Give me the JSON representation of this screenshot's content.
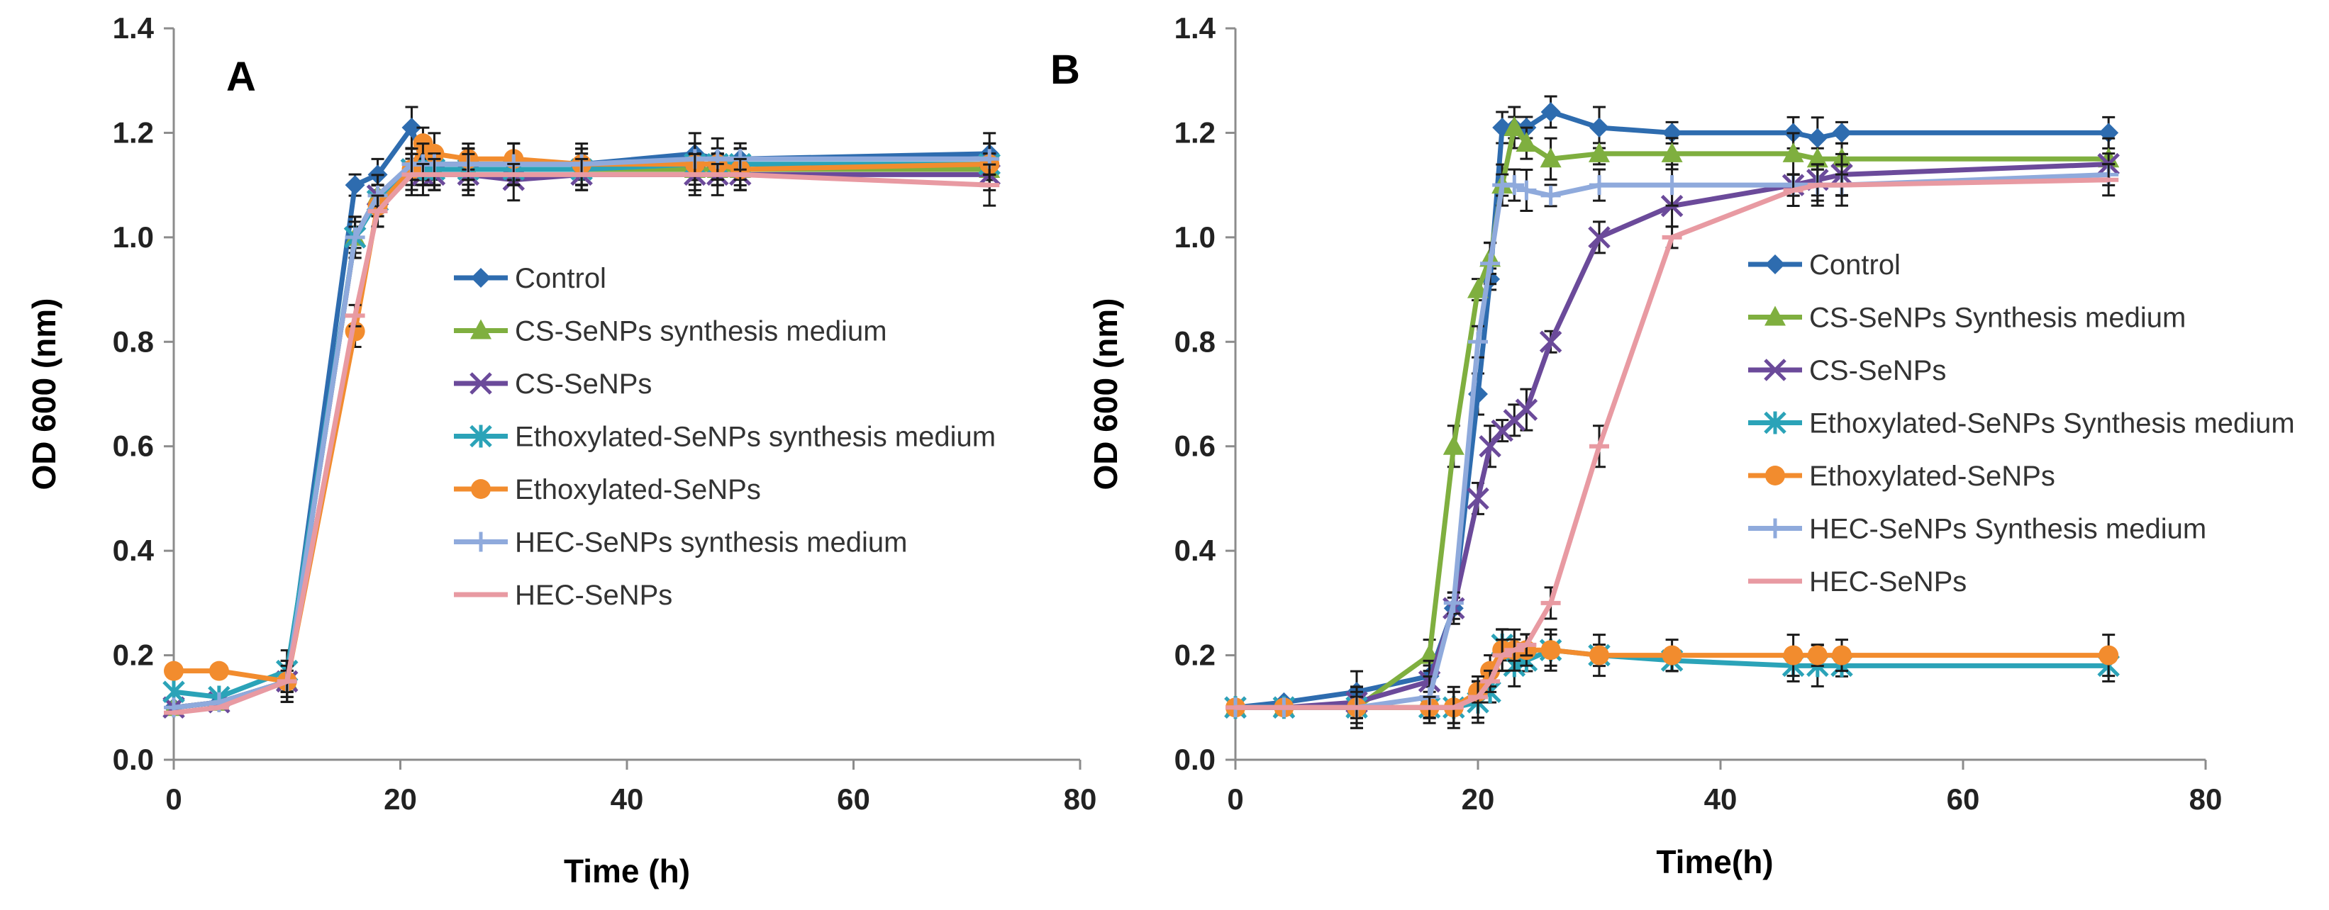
{
  "chart_data": [
    {
      "type": "line",
      "panel_label": "A",
      "xlabel": "Time (h)",
      "ylabel": "OD 600 (nm)",
      "xlim": [
        0,
        80
      ],
      "ylim": [
        0,
        1.4
      ],
      "xticks": [
        "0",
        "20",
        "40",
        "60",
        "80"
      ],
      "yticks": [
        "0.0",
        "0.2",
        "0.4",
        "0.6",
        "0.8",
        "1.0",
        "1.2",
        "1.4"
      ],
      "grid": false,
      "legend_position": "center-right",
      "series": [
        {
          "name": "Control",
          "color": "#2E6CAF",
          "marker": "diamond",
          "x": [
            0,
            4,
            10,
            16,
            18,
            21,
            22,
            23,
            26,
            30,
            36,
            46,
            48,
            50,
            72
          ],
          "y": [
            0.1,
            0.11,
            0.15,
            1.1,
            1.12,
            1.21,
            1.14,
            1.14,
            1.14,
            1.14,
            1.14,
            1.16,
            1.15,
            1.15,
            1.16
          ]
        },
        {
          "name": "CS-SeNPs synthesis medium",
          "color": "#7FAF3F",
          "marker": "triangle",
          "x": [
            0,
            4,
            10,
            16,
            18,
            21,
            22,
            23,
            26,
            30,
            36,
            46,
            48,
            50,
            72
          ],
          "y": [
            0.1,
            0.11,
            0.15,
            1.0,
            1.08,
            1.13,
            1.13,
            1.13,
            1.13,
            1.13,
            1.13,
            1.13,
            1.13,
            1.13,
            1.13
          ]
        },
        {
          "name": "CS-SeNPs",
          "color": "#6B4A9A",
          "marker": "x",
          "x": [
            0,
            4,
            10,
            16,
            18,
            21,
            22,
            23,
            26,
            30,
            36,
            46,
            48,
            50,
            72
          ],
          "y": [
            0.1,
            0.11,
            0.15,
            1.0,
            1.08,
            1.13,
            1.12,
            1.12,
            1.12,
            1.11,
            1.12,
            1.12,
            1.12,
            1.12,
            1.12
          ]
        },
        {
          "name": "Ethoxylated-SeNPs synthesis medium",
          "color": "#2BA3B8",
          "marker": "asterisk",
          "x": [
            0,
            4,
            10,
            16,
            18,
            21,
            22,
            23,
            26,
            30,
            36,
            46,
            48,
            50,
            72
          ],
          "y": [
            0.13,
            0.12,
            0.17,
            1.0,
            1.07,
            1.13,
            1.13,
            1.13,
            1.13,
            1.13,
            1.13,
            1.14,
            1.14,
            1.14,
            1.14
          ]
        },
        {
          "name": "Ethoxylated-SeNPs",
          "color": "#F28C2E",
          "marker": "circle",
          "x": [
            0,
            4,
            10,
            16,
            18,
            21,
            22,
            23,
            26,
            30,
            36,
            46,
            48,
            50,
            72
          ],
          "y": [
            0.17,
            0.17,
            0.15,
            0.82,
            1.06,
            1.13,
            1.18,
            1.16,
            1.15,
            1.15,
            1.14,
            1.14,
            1.14,
            1.13,
            1.14
          ]
        },
        {
          "name": "HEC-SeNPs synthesis medium",
          "color": "#8FAADC",
          "marker": "plus",
          "x": [
            0,
            4,
            10,
            16,
            18,
            21,
            22,
            23,
            26,
            30,
            36,
            46,
            48,
            50,
            72
          ],
          "y": [
            0.1,
            0.11,
            0.15,
            1.0,
            1.08,
            1.14,
            1.14,
            1.14,
            1.14,
            1.14,
            1.14,
            1.15,
            1.15,
            1.15,
            1.15
          ]
        },
        {
          "name": "HEC-SeNPs",
          "color": "#E89AA2",
          "marker": "dash",
          "x": [
            0,
            4,
            10,
            16,
            18,
            21,
            22,
            23,
            26,
            30,
            36,
            46,
            48,
            50,
            72
          ],
          "y": [
            0.09,
            0.1,
            0.15,
            0.85,
            1.05,
            1.12,
            1.12,
            1.12,
            1.12,
            1.12,
            1.12,
            1.12,
            1.12,
            1.12,
            1.1
          ]
        }
      ]
    },
    {
      "type": "line",
      "panel_label": "B",
      "xlabel": "Time(h)",
      "ylabel": "OD 600 (nm)",
      "xlim": [
        0,
        80
      ],
      "ylim": [
        0,
        1.4
      ],
      "xticks": [
        "0",
        "20",
        "40",
        "60",
        "80"
      ],
      "yticks": [
        "0.0",
        "0.2",
        "0.4",
        "0.6",
        "0.8",
        "1.0",
        "1.2",
        "1.4"
      ],
      "grid": false,
      "legend_position": "center-right",
      "series": [
        {
          "name": "Control",
          "color": "#2E6CAF",
          "marker": "diamond",
          "x": [
            0,
            4,
            10,
            16,
            18,
            20,
            21,
            22,
            23,
            24,
            26,
            30,
            36,
            46,
            48,
            50,
            72
          ],
          "y": [
            0.1,
            0.11,
            0.13,
            0.16,
            0.29,
            0.7,
            0.92,
            1.21,
            1.21,
            1.21,
            1.24,
            1.21,
            1.2,
            1.2,
            1.19,
            1.2,
            1.2
          ]
        },
        {
          "name": "CS-SeNPs Synthesis medium",
          "color": "#7FAF3F",
          "marker": "triangle",
          "x": [
            0,
            4,
            10,
            16,
            18,
            20,
            21,
            22,
            23,
            24,
            26,
            30,
            36,
            46,
            48,
            50,
            72
          ],
          "y": [
            0.1,
            0.1,
            0.1,
            0.2,
            0.6,
            0.9,
            0.96,
            1.1,
            1.21,
            1.18,
            1.15,
            1.16,
            1.16,
            1.16,
            1.15,
            1.15,
            1.15
          ]
        },
        {
          "name": "CS-SeNPs",
          "color": "#6B4A9A",
          "marker": "x",
          "x": [
            0,
            4,
            10,
            16,
            18,
            20,
            21,
            22,
            23,
            24,
            26,
            30,
            36,
            46,
            48,
            50,
            72
          ],
          "y": [
            0.1,
            0.1,
            0.11,
            0.15,
            0.29,
            0.5,
            0.6,
            0.63,
            0.65,
            0.67,
            0.8,
            1.0,
            1.06,
            1.1,
            1.11,
            1.12,
            1.14
          ]
        },
        {
          "name": "Ethoxylated-SeNPs Synthesis medium",
          "color": "#2BA3B8",
          "marker": "asterisk",
          "x": [
            0,
            4,
            10,
            16,
            18,
            20,
            21,
            22,
            23,
            24,
            26,
            30,
            36,
            46,
            48,
            50,
            72
          ],
          "y": [
            0.1,
            0.1,
            0.1,
            0.1,
            0.1,
            0.11,
            0.13,
            0.22,
            0.18,
            0.19,
            0.21,
            0.2,
            0.19,
            0.18,
            0.18,
            0.18,
            0.18
          ]
        },
        {
          "name": "Ethoxylated-SeNPs",
          "color": "#F28C2E",
          "marker": "circle",
          "x": [
            0,
            4,
            10,
            16,
            18,
            20,
            21,
            22,
            23,
            24,
            26,
            30,
            36,
            46,
            48,
            50,
            72
          ],
          "y": [
            0.1,
            0.1,
            0.1,
            0.1,
            0.1,
            0.13,
            0.17,
            0.21,
            0.21,
            0.21,
            0.21,
            0.2,
            0.2,
            0.2,
            0.2,
            0.2,
            0.2
          ]
        },
        {
          "name": "HEC-SeNPs Synthesis medium",
          "color": "#8FAADC",
          "marker": "plus",
          "x": [
            0,
            4,
            10,
            16,
            18,
            20,
            21,
            22,
            23,
            24,
            26,
            30,
            36,
            46,
            48,
            50,
            72
          ],
          "y": [
            0.1,
            0.1,
            0.1,
            0.12,
            0.3,
            0.8,
            0.95,
            1.1,
            1.1,
            1.09,
            1.08,
            1.1,
            1.1,
            1.1,
            1.1,
            1.1,
            1.12
          ]
        },
        {
          "name": "HEC-SeNPs",
          "color": "#E89AA2",
          "marker": "dash",
          "x": [
            0,
            4,
            10,
            16,
            18,
            20,
            21,
            22,
            23,
            24,
            26,
            30,
            36,
            46,
            48,
            50,
            72
          ],
          "y": [
            0.1,
            0.1,
            0.1,
            0.1,
            0.1,
            0.12,
            0.15,
            0.2,
            0.21,
            0.22,
            0.3,
            0.6,
            1.0,
            1.09,
            1.1,
            1.1,
            1.11
          ]
        }
      ]
    }
  ]
}
